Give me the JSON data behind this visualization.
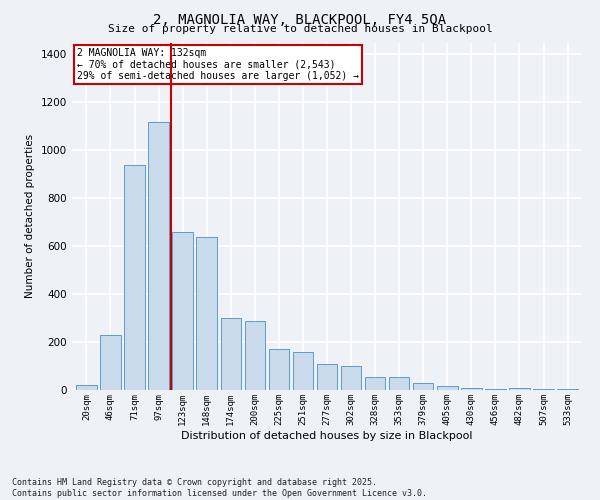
{
  "title": "2, MAGNOLIA WAY, BLACKPOOL, FY4 5QA",
  "subtitle": "Size of property relative to detached houses in Blackpool",
  "xlabel": "Distribution of detached houses by size in Blackpool",
  "ylabel": "Number of detached properties",
  "footnote": "Contains HM Land Registry data © Crown copyright and database right 2025.\nContains public sector information licensed under the Open Government Licence v3.0.",
  "bar_color": "#c9daea",
  "bar_edge_color": "#5b9bd5",
  "categories": [
    "20sqm",
    "46sqm",
    "71sqm",
    "97sqm",
    "123sqm",
    "148sqm",
    "174sqm",
    "200sqm",
    "225sqm",
    "251sqm",
    "277sqm",
    "302sqm",
    "328sqm",
    "353sqm",
    "379sqm",
    "405sqm",
    "430sqm",
    "456sqm",
    "482sqm",
    "507sqm",
    "533sqm"
  ],
  "values": [
    20,
    230,
    940,
    1120,
    660,
    640,
    300,
    290,
    170,
    160,
    110,
    100,
    55,
    55,
    30,
    15,
    10,
    5,
    10,
    5,
    3
  ],
  "ylim": [
    0,
    1450
  ],
  "yticks": [
    0,
    200,
    400,
    600,
    800,
    1000,
    1200,
    1400
  ],
  "vline_index": 4,
  "annotation_title": "2 MAGNOLIA WAY: 132sqm",
  "annotation_line1": "← 70% of detached houses are smaller (2,543)",
  "annotation_line2": "29% of semi-detached houses are larger (1,052) →",
  "annotation_box_color": "#ffffff",
  "annotation_box_edge_color": "#cc0000",
  "vline_color": "#cc0000",
  "background_color": "#eef2f7",
  "plot_bg_color": "#eef2f7",
  "grid_color": "#ffffff"
}
